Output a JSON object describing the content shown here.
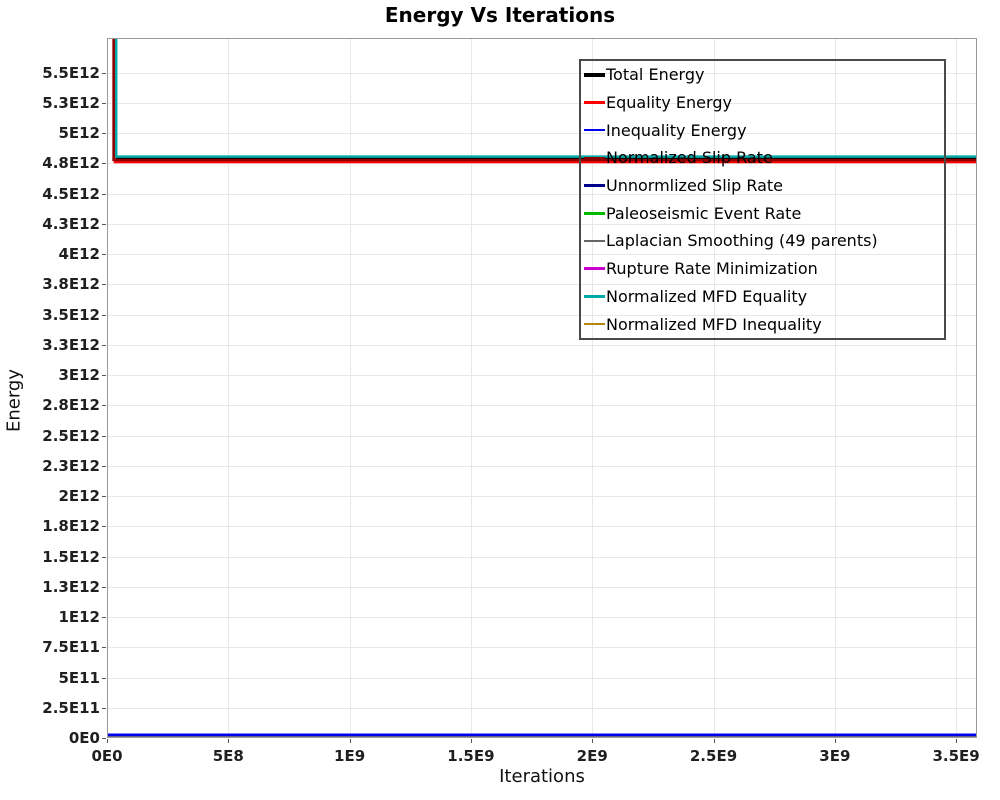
{
  "chart_data": {
    "type": "line",
    "title": "Energy Vs Iterations",
    "xlabel": "Iterations",
    "ylabel": "Energy",
    "xlim": [
      0,
      3586000000.0
    ],
    "ylim": [
      0,
      5787000000000.0
    ],
    "grid": true,
    "legend_position": "inside-top-right",
    "xticks": [
      {
        "v": 0,
        "label": "0E0"
      },
      {
        "v": 500000000.0,
        "label": "5E8"
      },
      {
        "v": 1000000000.0,
        "label": "1E9"
      },
      {
        "v": 1500000000.0,
        "label": "1.5E9"
      },
      {
        "v": 2000000000.0,
        "label": "2E9"
      },
      {
        "v": 2500000000.0,
        "label": "2.5E9"
      },
      {
        "v": 3000000000.0,
        "label": "3E9"
      },
      {
        "v": 3500000000.0,
        "label": "3.5E9"
      }
    ],
    "yticks": [
      {
        "v": 0,
        "label": "0E0"
      },
      {
        "v": 250000000000.0,
        "label": "2.5E11"
      },
      {
        "v": 500000000000.0,
        "label": "5E11"
      },
      {
        "v": 750000000000.0,
        "label": "7.5E11"
      },
      {
        "v": 1000000000000.0,
        "label": "1E12"
      },
      {
        "v": 1250000000000.0,
        "label": "1.3E12"
      },
      {
        "v": 1500000000000.0,
        "label": "1.5E12"
      },
      {
        "v": 1750000000000.0,
        "label": "1.8E12"
      },
      {
        "v": 2000000000000.0,
        "label": "2E12"
      },
      {
        "v": 2250000000000.0,
        "label": "2.3E12"
      },
      {
        "v": 2500000000000.0,
        "label": "2.5E12"
      },
      {
        "v": 2750000000000.0,
        "label": "2.8E12"
      },
      {
        "v": 3000000000000.0,
        "label": "3E12"
      },
      {
        "v": 3250000000000.0,
        "label": "3.3E12"
      },
      {
        "v": 3500000000000.0,
        "label": "3.5E12"
      },
      {
        "v": 3750000000000.0,
        "label": "3.8E12"
      },
      {
        "v": 4000000000000.0,
        "label": "4E12"
      },
      {
        "v": 4250000000000.0,
        "label": "4.3E12"
      },
      {
        "v": 4500000000000.0,
        "label": "4.5E12"
      },
      {
        "v": 4750000000000.0,
        "label": "4.8E12"
      },
      {
        "v": 5000000000000.0,
        "label": "5E12"
      },
      {
        "v": 5250000000000.0,
        "label": "5.3E12"
      },
      {
        "v": 5500000000000.0,
        "label": "5.5E12"
      }
    ],
    "series": [
      {
        "name": "Total Energy",
        "color": "#000000",
        "width": 4,
        "x": [
          29000000.0,
          29000000.0,
          3586000000.0
        ],
        "y": [
          6200000000000.0,
          4800000000000.0,
          4800000000000.0
        ]
      },
      {
        "name": "Equality Energy",
        "color": "#fe0000",
        "width": 2.5,
        "x": [
          29000000.0,
          29000000.0,
          3586000000.0
        ],
        "y": [
          6200000000000.0,
          4770000000000.0,
          4770000000000.0
        ]
      },
      {
        "name": "Inequality Energy",
        "color": "#0000ee",
        "width": 2.5,
        "x": [
          0,
          3586000000.0
        ],
        "y": [
          35000000000.0,
          35000000000.0
        ]
      },
      {
        "name": "Normalized Slip Rate",
        "color": "#8b0000",
        "width": 2.5,
        "x": [
          23000000.0,
          23000000.0,
          3586000000.0
        ],
        "y": [
          6200000000000.0,
          4787000000000.0,
          4787000000000.0
        ]
      },
      {
        "name": "Unnormlized Slip Rate",
        "color": "#00008b",
        "width": 2.5,
        "x": [
          0,
          3586000000.0
        ],
        "y": [
          12000000000.0,
          12000000000.0
        ]
      },
      {
        "name": "Paleoseismic Event Rate",
        "color": "#00bb00",
        "width": 2.5,
        "x": [
          0,
          3586000000.0
        ],
        "y": [
          6000000000.0,
          6000000000.0
        ]
      },
      {
        "name": "Laplacian Smoothing (49 parents)",
        "color": "#666666",
        "width": 2.5,
        "x": [
          0,
          3586000000.0
        ],
        "y": [
          4000000000.0,
          4000000000.0
        ]
      },
      {
        "name": "Rupture Rate Minimization",
        "color": "#cc00cc",
        "width": 2.5,
        "x": [
          0,
          3586000000.0
        ],
        "y": [
          2000000000.0,
          2000000000.0
        ]
      },
      {
        "name": "Normalized MFD Equality",
        "color": "#00a8a8",
        "width": 2.5,
        "x": [
          34000000.0,
          34000000.0,
          3586000000.0
        ],
        "y": [
          6200000000000.0,
          4815000000000.0,
          4815000000000.0
        ]
      },
      {
        "name": "Normalized MFD Inequality",
        "color": "#b8860b",
        "width": 2.5,
        "x": [
          0,
          3586000000.0
        ],
        "y": [
          8000000000.0,
          8000000000.0
        ]
      }
    ]
  }
}
